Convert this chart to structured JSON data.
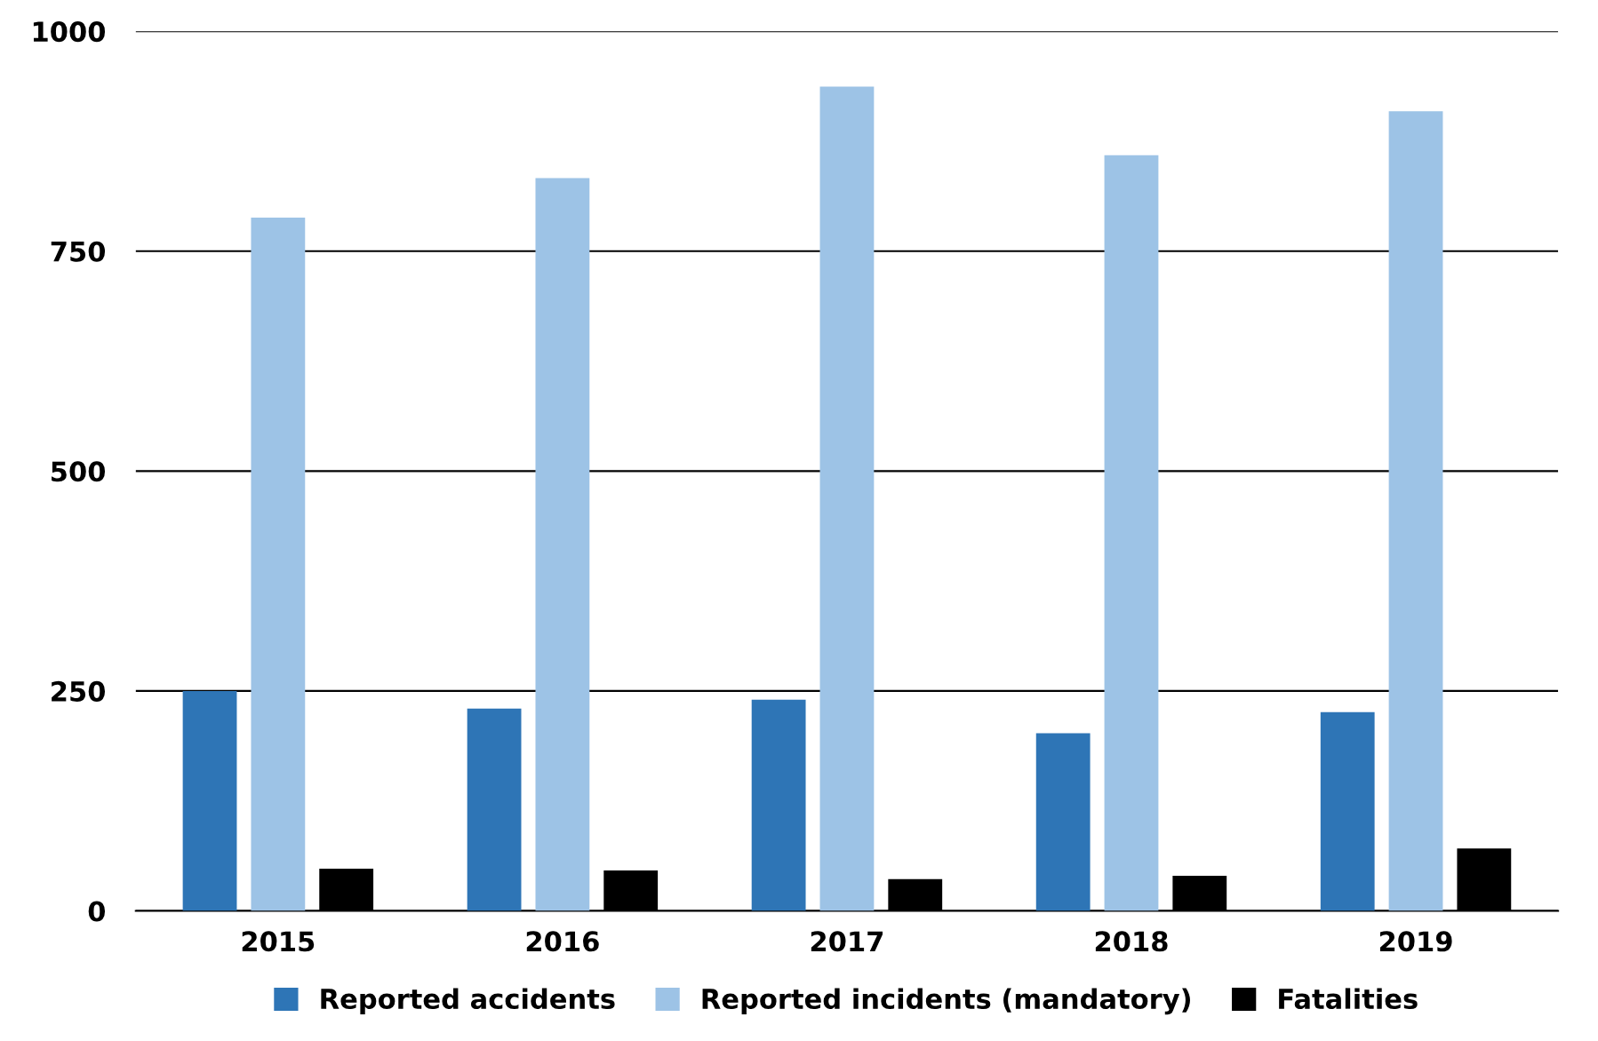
{
  "chart_data": {
    "type": "bar",
    "categories": [
      "2015",
      "2016",
      "2017",
      "2018",
      "2019"
    ],
    "series": [
      {
        "name": "Reported accidents",
        "color": "#2e75b6",
        "values": [
          250,
          230,
          240,
          202,
          226
        ]
      },
      {
        "name": "Reported incidents (mandatory)",
        "color": "#9dc3e6",
        "values": [
          788,
          833,
          937,
          859,
          909
        ]
      },
      {
        "name": "Fatalities",
        "color": "#000000",
        "values": [
          48,
          46,
          36,
          40,
          71
        ]
      }
    ],
    "ylim": [
      0,
      1000
    ],
    "yticks": [
      0,
      250,
      500,
      750,
      1000
    ],
    "grid": "y",
    "legend": "bottom"
  }
}
